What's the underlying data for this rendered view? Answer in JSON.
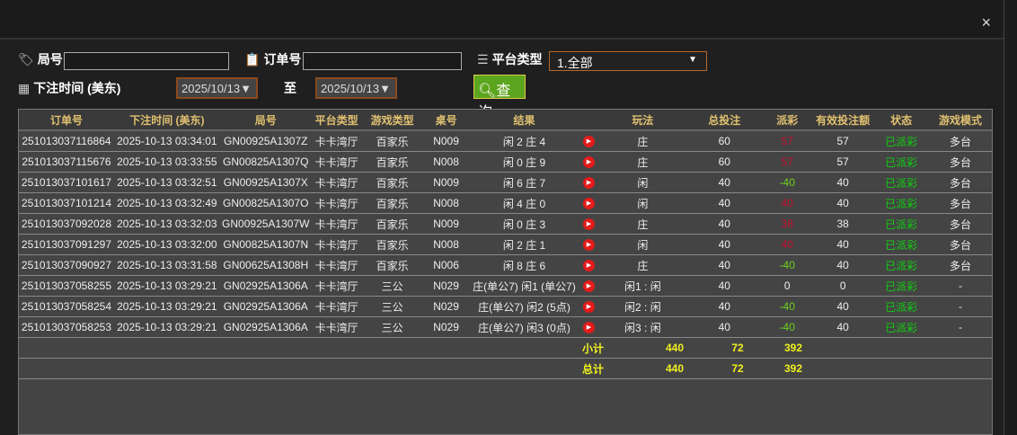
{
  "filters": {
    "round_label": "局号",
    "round_value": "",
    "order_label": "订单号",
    "order_value": "",
    "platform_label": "平台类型",
    "platform_value": "1.全部",
    "time_label": "下注时间 (美东)",
    "date_from": "2025/10/13",
    "to_label": "至",
    "date_to": "2025/10/13",
    "query_label": "查询"
  },
  "close_label": "×",
  "colors": {
    "payout_win": "#c8102e",
    "payout_loss": "#6cd21e",
    "status": "#10d010",
    "summary": "#f0f020"
  },
  "columns": [
    "订单号",
    "下注时间 (美东)",
    "局号",
    "平台类型",
    "游戏类型",
    "桌号",
    "结果",
    "",
    "玩法",
    "总投注",
    "派彩",
    "有效投注额",
    "状态",
    "游戏模式"
  ],
  "rows": [
    {
      "order": "251013037116864",
      "time": "2025-10-13 03:34:01",
      "round": "GN00925A1307Z",
      "platform": "卡卡湾厅",
      "game": "百家乐",
      "table": "N009",
      "result": "闲 2 庄 4",
      "play": "庄",
      "bet": "60",
      "payout": "57",
      "payout_type": "win",
      "valid": "57",
      "status": "已派彩",
      "mode": "多台"
    },
    {
      "order": "251013037115676",
      "time": "2025-10-13 03:33:55",
      "round": "GN00825A1307Q",
      "platform": "卡卡湾厅",
      "game": "百家乐",
      "table": "N008",
      "result": "闲 0 庄 9",
      "play": "庄",
      "bet": "60",
      "payout": "57",
      "payout_type": "win",
      "valid": "57",
      "status": "已派彩",
      "mode": "多台"
    },
    {
      "order": "251013037101617",
      "time": "2025-10-13 03:32:51",
      "round": "GN00925A1307X",
      "platform": "卡卡湾厅",
      "game": "百家乐",
      "table": "N009",
      "result": "闲 6 庄 7",
      "play": "闲",
      "bet": "40",
      "payout": "-40",
      "payout_type": "loss",
      "valid": "40",
      "status": "已派彩",
      "mode": "多台"
    },
    {
      "order": "251013037101214",
      "time": "2025-10-13 03:32:49",
      "round": "GN00825A1307O",
      "platform": "卡卡湾厅",
      "game": "百家乐",
      "table": "N008",
      "result": "闲 4 庄 0",
      "play": "闲",
      "bet": "40",
      "payout": "40",
      "payout_type": "win",
      "valid": "40",
      "status": "已派彩",
      "mode": "多台"
    },
    {
      "order": "251013037092028",
      "time": "2025-10-13 03:32:03",
      "round": "GN00925A1307W",
      "platform": "卡卡湾厅",
      "game": "百家乐",
      "table": "N009",
      "result": "闲 0 庄 3",
      "play": "庄",
      "bet": "40",
      "payout": "38",
      "payout_type": "win",
      "valid": "38",
      "status": "已派彩",
      "mode": "多台"
    },
    {
      "order": "251013037091297",
      "time": "2025-10-13 03:32:00",
      "round": "GN00825A1307N",
      "platform": "卡卡湾厅",
      "game": "百家乐",
      "table": "N008",
      "result": "闲 2 庄 1",
      "play": "闲",
      "bet": "40",
      "payout": "40",
      "payout_type": "win",
      "valid": "40",
      "status": "已派彩",
      "mode": "多台"
    },
    {
      "order": "251013037090927",
      "time": "2025-10-13 03:31:58",
      "round": "GN00625A1308H",
      "platform": "卡卡湾厅",
      "game": "百家乐",
      "table": "N006",
      "result": "闲 8 庄 6",
      "play": "庄",
      "bet": "40",
      "payout": "-40",
      "payout_type": "loss",
      "valid": "40",
      "status": "已派彩",
      "mode": "多台"
    },
    {
      "order": "251013037058255",
      "time": "2025-10-13 03:29:21",
      "round": "GN02925A1306A",
      "platform": "卡卡湾厅",
      "game": "三公",
      "table": "N029",
      "result": "庄(单公7) 闲1 (单公7)",
      "play": "闲1 : 闲",
      "bet": "40",
      "payout": "0",
      "payout_type": "neutral",
      "valid": "0",
      "status": "已派彩",
      "mode": "-"
    },
    {
      "order": "251013037058254",
      "time": "2025-10-13 03:29:21",
      "round": "GN02925A1306A",
      "platform": "卡卡湾厅",
      "game": "三公",
      "table": "N029",
      "result": "庄(单公7) 闲2 (5点)",
      "play": "闲2 : 闲",
      "bet": "40",
      "payout": "-40",
      "payout_type": "loss",
      "valid": "40",
      "status": "已派彩",
      "mode": "-"
    },
    {
      "order": "251013037058253",
      "time": "2025-10-13 03:29:21",
      "round": "GN02925A1306A",
      "platform": "卡卡湾厅",
      "game": "三公",
      "table": "N029",
      "result": "庄(单公7) 闲3 (0点)",
      "play": "闲3 : 闲",
      "bet": "40",
      "payout": "-40",
      "payout_type": "loss",
      "valid": "40",
      "status": "已派彩",
      "mode": "-"
    }
  ],
  "subtotal": {
    "label": "小计",
    "bet": "440",
    "payout": "72",
    "valid": "392"
  },
  "total": {
    "label": "总计",
    "bet": "440",
    "payout": "72",
    "valid": "392"
  }
}
